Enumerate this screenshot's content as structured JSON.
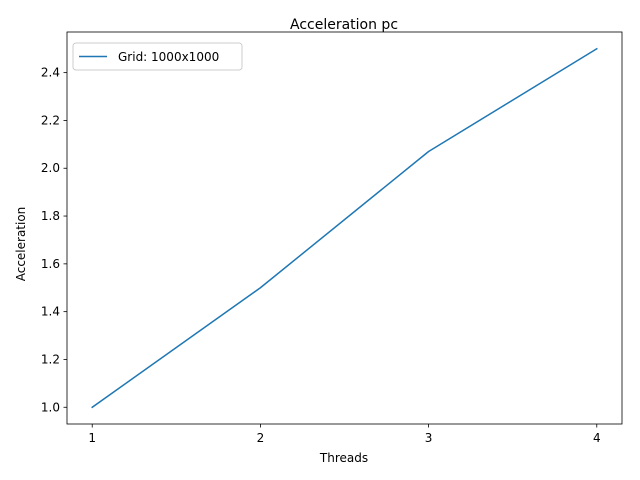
{
  "chart_data": {
    "type": "line",
    "title": "Acceleration pc",
    "xlabel": "Threads",
    "ylabel": "Acceleration",
    "x": [
      1,
      2,
      3,
      4
    ],
    "xticks": [
      "1",
      "2",
      "3",
      "4"
    ],
    "yticks": [
      "1.0",
      "1.2",
      "1.4",
      "1.6",
      "1.8",
      "2.0",
      "2.2",
      "2.4"
    ],
    "xlim": [
      0.85,
      4.15
    ],
    "ylim": [
      0.93,
      2.57
    ],
    "grid": false,
    "legend_position": "top-left",
    "series": [
      {
        "name": "Grid: 1000x1000",
        "values": [
          1.0,
          1.5,
          2.07,
          2.5
        ],
        "color": "#1f77b4"
      }
    ]
  }
}
